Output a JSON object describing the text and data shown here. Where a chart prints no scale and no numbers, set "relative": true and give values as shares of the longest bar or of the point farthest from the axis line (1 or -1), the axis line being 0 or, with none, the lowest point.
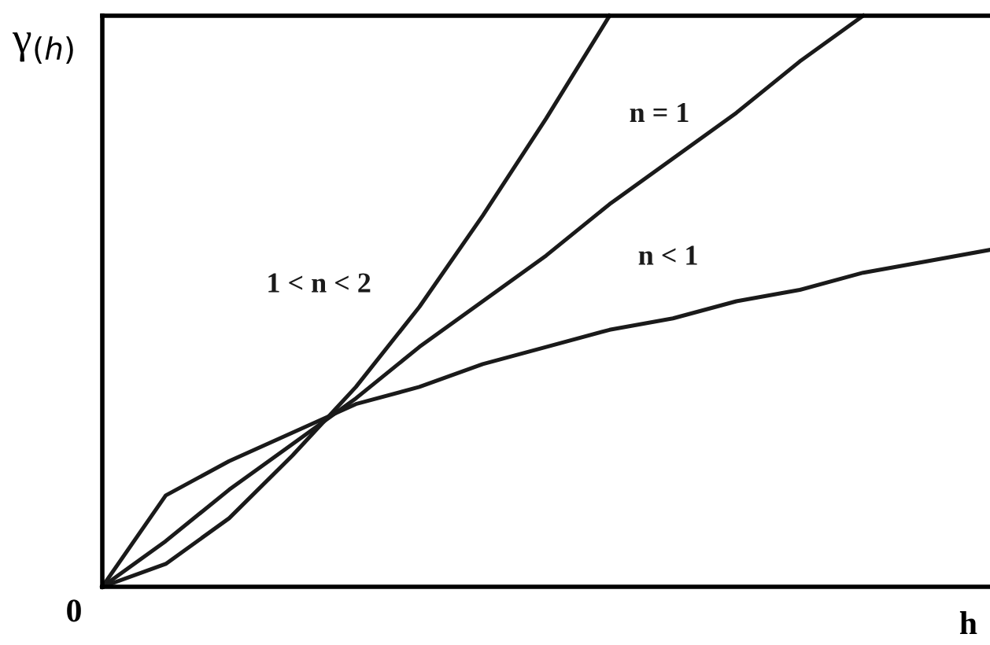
{
  "chart_data": {
    "type": "line",
    "relative": true,
    "ylabel": "γ$_{(h)}$",
    "xlabel": "h",
    "categories": [
      null,
      null,
      null,
      null,
      null,
      null,
      null,
      null,
      null,
      null,
      null,
      null,
      null,
      null,
      null
    ],
    "series": [
      {
        "name": "1 < n < 2",
        "color": "#1a1a1a",
        "values": [
          0,
          0.04,
          0.12,
          0.23,
          0.35,
          0.49,
          0.65,
          0.82,
          1,
          null,
          null,
          null,
          null,
          null,
          null
        ]
      },
      {
        "name": "n = 1",
        "color": "#1a1a1a",
        "values": [
          0,
          0.08,
          0.17,
          0.25,
          0.33,
          0.42,
          0.5,
          0.58,
          0.67,
          0.75,
          0.83,
          0.92,
          1,
          null,
          null
        ]
      },
      {
        "name": "n < 1",
        "color": "#1a1a1a",
        "values": [
          0,
          0.16,
          0.22,
          0.27,
          0.32,
          0.35,
          0.39,
          0.42,
          0.45,
          0.47,
          0.5,
          0.52,
          0.55,
          0.57,
          0.59
        ]
      }
    ],
    "annotations": [
      "0"
    ],
    "legend": false,
    "marker": "none",
    "line_style": "solid"
  }
}
